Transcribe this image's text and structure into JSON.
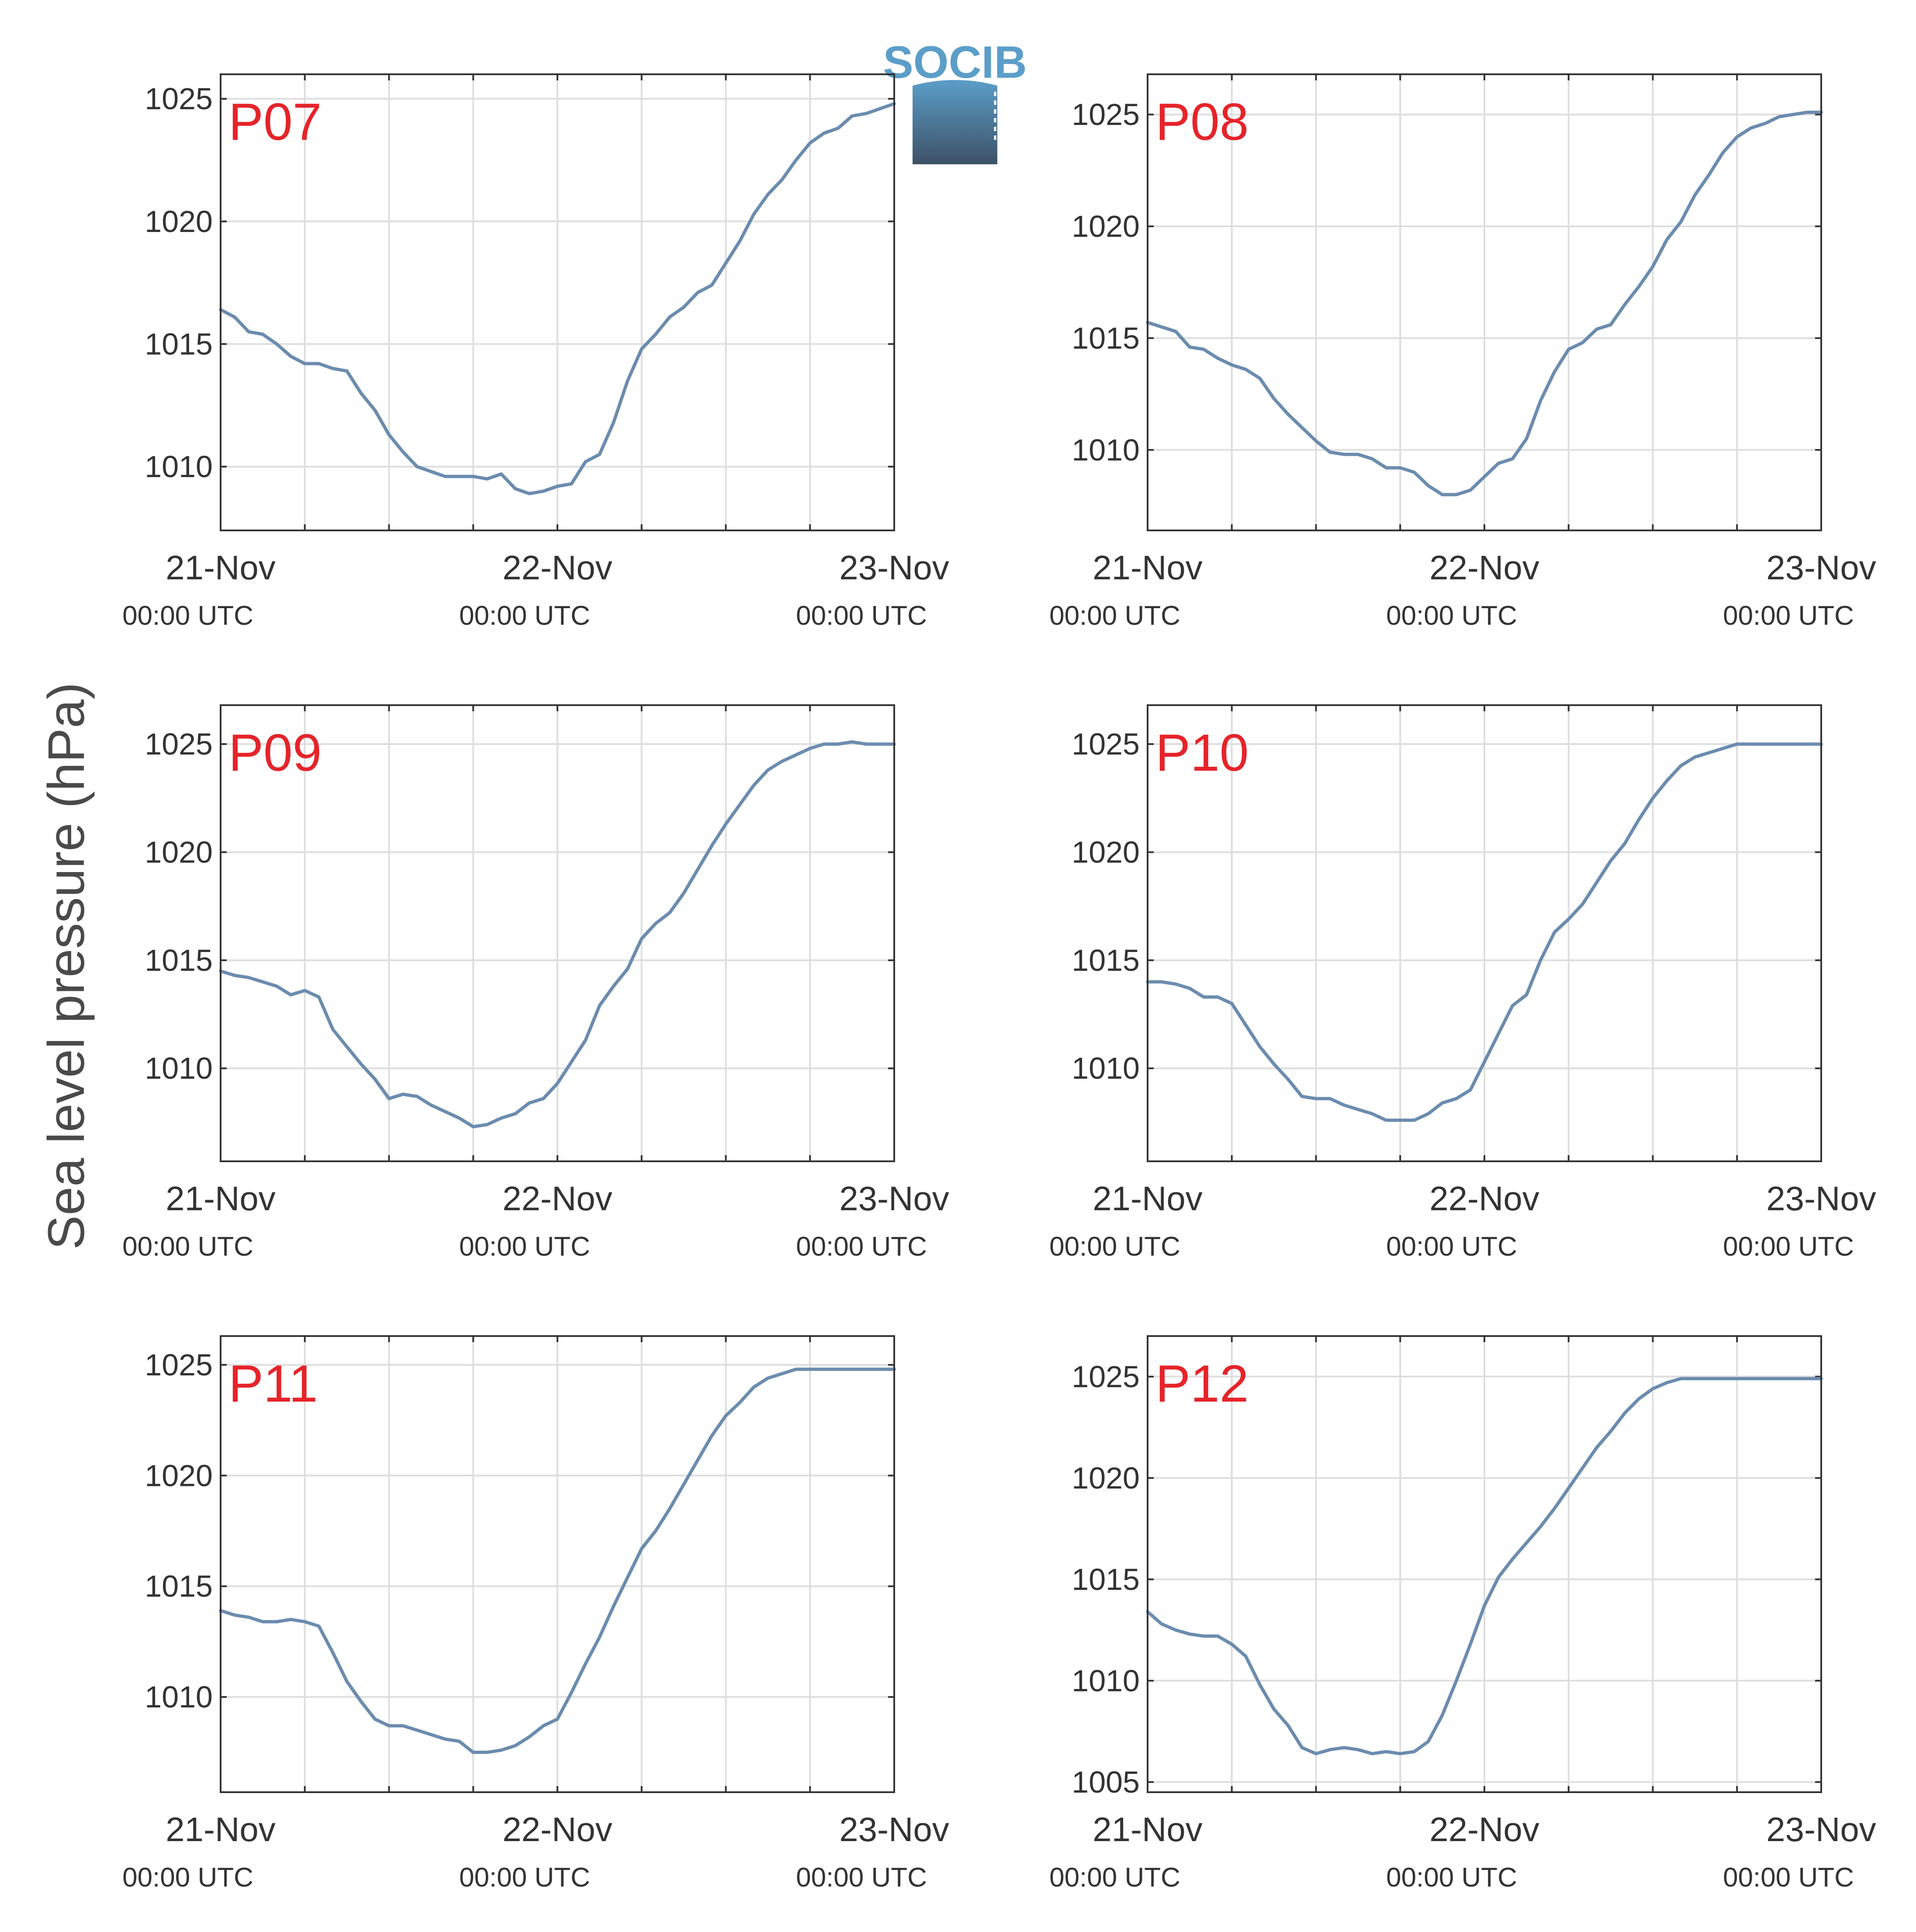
{
  "ylabel": "Sea level pressure (hPa)",
  "logo": {
    "text": "SOCIB",
    "color_top": "#5b9ec8",
    "color_bottom": "#3d5166"
  },
  "colors": {
    "series": "#6b8cae",
    "station_label": "#e5242a",
    "grid": "#dedede",
    "axis": "#333333"
  },
  "chart_data": [
    {
      "type": "line",
      "label": "P07",
      "x_tick_labels": [
        {
          "date": "21-Nov",
          "time": "00:00 UTC"
        },
        {
          "date": "22-Nov",
          "time": "00:00 UTC"
        },
        {
          "date": "23-Nov",
          "time": "00:00 UTC"
        }
      ],
      "y_ticks": [
        1010,
        1015,
        1020,
        1025
      ],
      "ylim": [
        1007.4,
        1026.0
      ],
      "xlim_hours": [
        0,
        48
      ],
      "x_hours": [
        0,
        1,
        2,
        3,
        4,
        5,
        6,
        7,
        8,
        9,
        10,
        11,
        12,
        13,
        14,
        15,
        16,
        17,
        18,
        19,
        20,
        21,
        22,
        23,
        24,
        25,
        26,
        27,
        28,
        29,
        30,
        31,
        32,
        33,
        34,
        35,
        36,
        37,
        38,
        39,
        40,
        41,
        42,
        43,
        44,
        45,
        46,
        47,
        48
      ],
      "values": [
        1016.4,
        1016.1,
        1015.5,
        1015.4,
        1015.0,
        1014.5,
        1014.2,
        1014.2,
        1014.0,
        1013.9,
        1013.0,
        1012.3,
        1011.3,
        1010.6,
        1010.0,
        1009.8,
        1009.6,
        1009.6,
        1009.6,
        1009.5,
        1009.7,
        1009.1,
        1008.9,
        1009.0,
        1009.2,
        1009.3,
        1010.2,
        1010.5,
        1011.8,
        1013.5,
        1014.8,
        1015.4,
        1016.1,
        1016.5,
        1017.1,
        1017.4,
        1018.3,
        1019.2,
        1020.3,
        1021.1,
        1021.7,
        1022.5,
        1023.2,
        1023.6,
        1023.8,
        1024.3,
        1024.4,
        1024.6,
        1024.8
      ]
    },
    {
      "type": "line",
      "label": "P08",
      "x_tick_labels": [
        {
          "date": "21-Nov",
          "time": "00:00 UTC"
        },
        {
          "date": "22-Nov",
          "time": "00:00 UTC"
        },
        {
          "date": "23-Nov",
          "time": "00:00 UTC"
        }
      ],
      "y_ticks": [
        1010,
        1015,
        1020,
        1025
      ],
      "ylim": [
        1006.4,
        1026.8
      ],
      "xlim_hours": [
        0,
        48
      ],
      "x_hours": [
        0,
        1,
        2,
        3,
        4,
        5,
        6,
        7,
        8,
        9,
        10,
        11,
        12,
        13,
        14,
        15,
        16,
        17,
        18,
        19,
        20,
        21,
        22,
        23,
        24,
        25,
        26,
        27,
        28,
        29,
        30,
        31,
        32,
        33,
        34,
        35,
        36,
        37,
        38,
        39,
        40,
        41,
        42,
        43,
        44,
        45,
        46,
        47,
        48
      ],
      "values": [
        1015.7,
        1015.5,
        1015.3,
        1014.6,
        1014.5,
        1014.1,
        1013.8,
        1013.6,
        1013.2,
        1012.3,
        1011.6,
        1011.0,
        1010.4,
        1009.9,
        1009.8,
        1009.8,
        1009.6,
        1009.2,
        1009.2,
        1009.0,
        1008.4,
        1008.0,
        1008.0,
        1008.2,
        1008.8,
        1009.4,
        1009.6,
        1010.5,
        1012.2,
        1013.5,
        1014.5,
        1014.8,
        1015.4,
        1015.6,
        1016.5,
        1017.3,
        1018.2,
        1019.4,
        1020.2,
        1021.4,
        1022.3,
        1023.3,
        1024.0,
        1024.4,
        1024.6,
        1024.9,
        1025.0,
        1025.1,
        1025.1
      ]
    },
    {
      "type": "line",
      "label": "P09",
      "x_tick_labels": [
        {
          "date": "21-Nov",
          "time": "00:00 UTC"
        },
        {
          "date": "22-Nov",
          "time": "00:00 UTC"
        },
        {
          "date": "23-Nov",
          "time": "00:00 UTC"
        }
      ],
      "y_ticks": [
        1010,
        1015,
        1020,
        1025
      ],
      "ylim": [
        1005.7,
        1026.8
      ],
      "xlim_hours": [
        0,
        48
      ],
      "x_hours": [
        0,
        1,
        2,
        3,
        4,
        5,
        6,
        7,
        8,
        9,
        10,
        11,
        12,
        13,
        14,
        15,
        16,
        17,
        18,
        19,
        20,
        21,
        22,
        23,
        24,
        25,
        26,
        27,
        28,
        29,
        30,
        31,
        32,
        33,
        34,
        35,
        36,
        37,
        38,
        39,
        40,
        41,
        42,
        43,
        44,
        45,
        46,
        47,
        48
      ],
      "values": [
        1014.5,
        1014.3,
        1014.2,
        1014.0,
        1013.8,
        1013.4,
        1013.6,
        1013.3,
        1011.8,
        1011.0,
        1010.2,
        1009.5,
        1008.6,
        1008.8,
        1008.7,
        1008.3,
        1008.0,
        1007.7,
        1007.3,
        1007.4,
        1007.7,
        1007.9,
        1008.4,
        1008.6,
        1009.3,
        1010.3,
        1011.3,
        1012.9,
        1013.8,
        1014.6,
        1016.0,
        1016.7,
        1017.2,
        1018.1,
        1019.2,
        1020.3,
        1021.3,
        1022.2,
        1023.1,
        1023.8,
        1024.2,
        1024.5,
        1024.8,
        1025.0,
        1025.0,
        1025.1,
        1025.0,
        1025.0,
        1025.0
      ]
    },
    {
      "type": "line",
      "label": "P10",
      "x_tick_labels": [
        {
          "date": "21-Nov",
          "time": "00:00 UTC"
        },
        {
          "date": "22-Nov",
          "time": "00:00 UTC"
        },
        {
          "date": "23-Nov",
          "time": "00:00 UTC"
        }
      ],
      "y_ticks": [
        1010,
        1015,
        1020,
        1025
      ],
      "ylim": [
        1005.7,
        1026.8
      ],
      "xlim_hours": [
        0,
        48
      ],
      "x_hours": [
        0,
        1,
        2,
        3,
        4,
        5,
        6,
        7,
        8,
        9,
        10,
        11,
        12,
        13,
        14,
        15,
        16,
        17,
        18,
        19,
        20,
        21,
        22,
        23,
        24,
        25,
        26,
        27,
        28,
        29,
        30,
        31,
        32,
        33,
        34,
        35,
        36,
        37,
        38,
        39,
        40,
        41,
        42,
        43,
        44,
        45,
        46,
        47,
        48
      ],
      "values": [
        1014.0,
        1014.0,
        1013.9,
        1013.7,
        1013.3,
        1013.3,
        1013.0,
        1012.0,
        1011.0,
        1010.2,
        1009.5,
        1008.7,
        1008.6,
        1008.6,
        1008.3,
        1008.1,
        1007.9,
        1007.6,
        1007.6,
        1007.6,
        1007.9,
        1008.4,
        1008.6,
        1009.0,
        1010.3,
        1011.6,
        1012.9,
        1013.4,
        1015.0,
        1016.3,
        1016.9,
        1017.6,
        1018.6,
        1019.6,
        1020.4,
        1021.5,
        1022.5,
        1023.3,
        1024.0,
        1024.4,
        1024.6,
        1024.8,
        1025.0,
        1025.0,
        1025.0,
        1025.0,
        1025.0,
        1025.0,
        1025.0
      ]
    },
    {
      "type": "line",
      "label": "P11",
      "x_tick_labels": [
        {
          "date": "21-Nov",
          "time": "00:00 UTC"
        },
        {
          "date": "22-Nov",
          "time": "00:00 UTC"
        },
        {
          "date": "23-Nov",
          "time": "00:00 UTC"
        }
      ],
      "y_ticks": [
        1010,
        1015,
        1020,
        1025
      ],
      "ylim": [
        1005.7,
        1026.3
      ],
      "xlim_hours": [
        0,
        48
      ],
      "x_hours": [
        0,
        1,
        2,
        3,
        4,
        5,
        6,
        7,
        8,
        9,
        10,
        11,
        12,
        13,
        14,
        15,
        16,
        17,
        18,
        19,
        20,
        21,
        22,
        23,
        24,
        25,
        26,
        27,
        28,
        29,
        30,
        31,
        32,
        33,
        34,
        35,
        36,
        37,
        38,
        39,
        40,
        41,
        42,
        43,
        44,
        45,
        46,
        47,
        48
      ],
      "values": [
        1013.9,
        1013.7,
        1013.6,
        1013.4,
        1013.4,
        1013.5,
        1013.4,
        1013.2,
        1012.0,
        1010.7,
        1009.8,
        1009.0,
        1008.7,
        1008.7,
        1008.5,
        1008.3,
        1008.1,
        1008.0,
        1007.5,
        1007.5,
        1007.6,
        1007.8,
        1008.2,
        1008.7,
        1009.0,
        1010.2,
        1011.5,
        1012.7,
        1014.1,
        1015.4,
        1016.7,
        1017.5,
        1018.5,
        1019.6,
        1020.7,
        1021.8,
        1022.7,
        1023.3,
        1024.0,
        1024.4,
        1024.6,
        1024.8,
        1024.8,
        1024.8,
        1024.8,
        1024.8,
        1024.8,
        1024.8,
        1024.8
      ]
    },
    {
      "type": "line",
      "label": "P12",
      "x_tick_labels": [
        {
          "date": "21-Nov",
          "time": "00:00 UTC"
        },
        {
          "date": "22-Nov",
          "time": "00:00 UTC"
        },
        {
          "date": "23-Nov",
          "time": "00:00 UTC"
        }
      ],
      "y_ticks": [
        1005,
        1010,
        1015,
        1020,
        1025
      ],
      "ylim": [
        1004.5,
        1027.0
      ],
      "xlim_hours": [
        0,
        48
      ],
      "x_hours": [
        0,
        1,
        2,
        3,
        4,
        5,
        6,
        7,
        8,
        9,
        10,
        11,
        12,
        13,
        14,
        15,
        16,
        17,
        18,
        19,
        20,
        21,
        22,
        23,
        24,
        25,
        26,
        27,
        28,
        29,
        30,
        31,
        32,
        33,
        34,
        35,
        36,
        37,
        38,
        39,
        40,
        41,
        42,
        43,
        44,
        45,
        46,
        47,
        48
      ],
      "values": [
        1013.4,
        1012.8,
        1012.5,
        1012.3,
        1012.2,
        1012.2,
        1011.8,
        1011.2,
        1009.8,
        1008.6,
        1007.8,
        1006.7,
        1006.4,
        1006.6,
        1006.7,
        1006.6,
        1006.4,
        1006.5,
        1006.4,
        1006.5,
        1007.0,
        1008.3,
        1010.0,
        1011.8,
        1013.7,
        1015.1,
        1016.0,
        1016.8,
        1017.6,
        1018.5,
        1019.5,
        1020.5,
        1021.5,
        1022.3,
        1023.2,
        1023.9,
        1024.4,
        1024.7,
        1024.9,
        1024.9,
        1024.9,
        1024.9,
        1024.9,
        1024.9,
        1024.9,
        1024.9,
        1024.9,
        1024.9,
        1024.9
      ]
    }
  ]
}
